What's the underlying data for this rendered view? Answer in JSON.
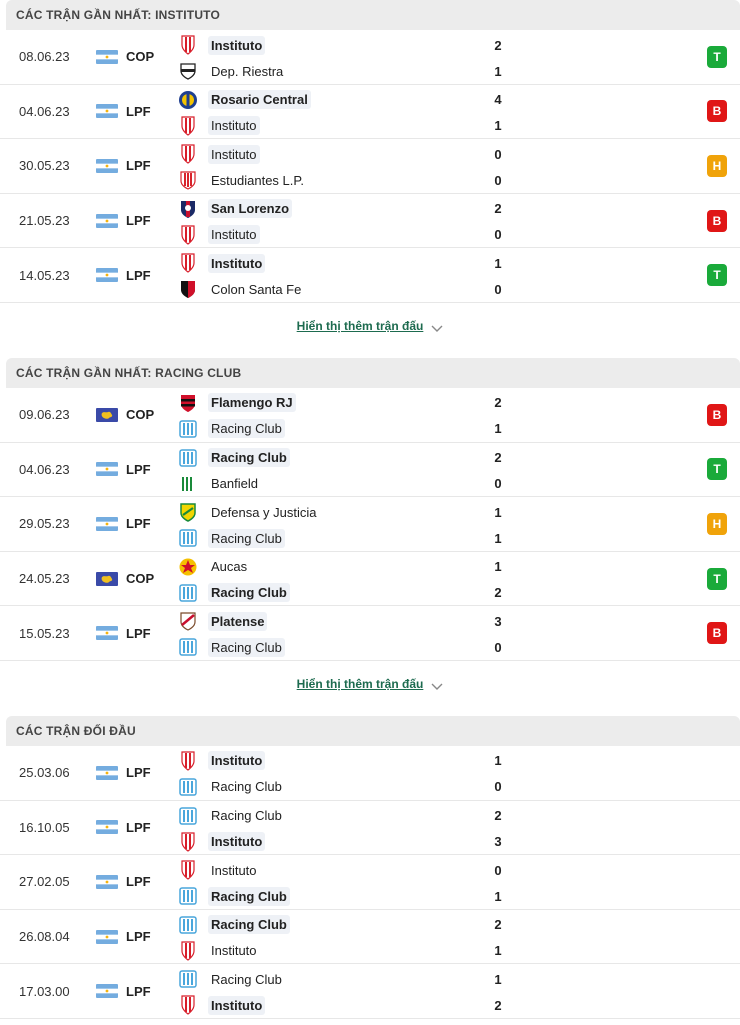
{
  "sections": [
    {
      "title": "CÁC TRẬN GẦN NHẤT: INSTITUTO",
      "more_label": "Hiển thị thêm trận đấu",
      "matches": [
        {
          "date": "08.06.23",
          "flag": "argentina-flag",
          "league": "COP",
          "home": "Instituto",
          "home_logo": "instituto",
          "home_score": "2",
          "away": "Dep. Riestra",
          "away_logo": "riestra",
          "away_score": "1",
          "result": "T",
          "win": "home",
          "hl": "home"
        },
        {
          "date": "04.06.23",
          "flag": "argentina-flag",
          "league": "LPF",
          "home": "Rosario Central",
          "home_logo": "rosario",
          "home_score": "4",
          "away": "Instituto",
          "away_logo": "instituto",
          "away_score": "1",
          "result": "B",
          "win": "home",
          "hl": "away"
        },
        {
          "date": "30.05.23",
          "flag": "argentina-flag",
          "league": "LPF",
          "home": "Instituto",
          "home_logo": "instituto",
          "home_score": "0",
          "away": "Estudiantes L.P.",
          "away_logo": "estudiantes",
          "away_score": "0",
          "result": "H",
          "win": "",
          "hl": "home"
        },
        {
          "date": "21.05.23",
          "flag": "argentina-flag",
          "league": "LPF",
          "home": "San Lorenzo",
          "home_logo": "sanlorenzo",
          "home_score": "2",
          "away": "Instituto",
          "away_logo": "instituto",
          "away_score": "0",
          "result": "B",
          "win": "home",
          "hl": "away"
        },
        {
          "date": "14.05.23",
          "flag": "argentina-flag",
          "league": "LPF",
          "home": "Instituto",
          "home_logo": "instituto",
          "home_score": "1",
          "away": "Colon Santa Fe",
          "away_logo": "colon",
          "away_score": "0",
          "result": "T",
          "win": "home",
          "hl": "home"
        }
      ]
    },
    {
      "title": "CÁC TRẬN GẦN NHẤT: RACING CLUB",
      "more_label": "Hiển thị thêm trận đấu",
      "matches": [
        {
          "date": "09.06.23",
          "flag": "conmebol-flag",
          "league": "COP",
          "home": "Flamengo RJ",
          "home_logo": "flamengo",
          "home_score": "2",
          "away": "Racing Club",
          "away_logo": "racing",
          "away_score": "1",
          "result": "B",
          "win": "home",
          "hl": "away"
        },
        {
          "date": "04.06.23",
          "flag": "argentina-flag",
          "league": "LPF",
          "home": "Racing Club",
          "home_logo": "racing",
          "home_score": "2",
          "away": "Banfield",
          "away_logo": "banfield",
          "away_score": "0",
          "result": "T",
          "win": "home",
          "hl": "home"
        },
        {
          "date": "29.05.23",
          "flag": "argentina-flag",
          "league": "LPF",
          "home": "Defensa y Justicia",
          "home_logo": "defensa",
          "home_score": "1",
          "away": "Racing Club",
          "away_logo": "racing",
          "away_score": "1",
          "result": "H",
          "win": "",
          "hl": "away"
        },
        {
          "date": "24.05.23",
          "flag": "conmebol-flag",
          "league": "COP",
          "home": "Aucas",
          "home_logo": "aucas",
          "home_score": "1",
          "away": "Racing Club",
          "away_logo": "racing",
          "away_score": "2",
          "result": "T",
          "win": "away",
          "hl": "away"
        },
        {
          "date": "15.05.23",
          "flag": "argentina-flag",
          "league": "LPF",
          "home": "Platense",
          "home_logo": "platense",
          "home_score": "3",
          "away": "Racing Club",
          "away_logo": "racing",
          "away_score": "0",
          "result": "B",
          "win": "home",
          "hl": "away"
        }
      ]
    },
    {
      "title": "CÁC TRẬN ĐỐI ĐẦU",
      "more_label": "",
      "matches": [
        {
          "date": "25.03.06",
          "flag": "argentina-flag",
          "league": "LPF",
          "home": "Instituto",
          "home_logo": "instituto",
          "home_score": "1",
          "away": "Racing Club",
          "away_logo": "racing",
          "away_score": "0",
          "result": "",
          "win": "home",
          "hl": ""
        },
        {
          "date": "16.10.05",
          "flag": "argentina-flag",
          "league": "LPF",
          "home": "Racing Club",
          "home_logo": "racing",
          "home_score": "2",
          "away": "Instituto",
          "away_logo": "instituto",
          "away_score": "3",
          "result": "",
          "win": "away",
          "hl": ""
        },
        {
          "date": "27.02.05",
          "flag": "argentina-flag",
          "league": "LPF",
          "home": "Instituto",
          "home_logo": "instituto",
          "home_score": "0",
          "away": "Racing Club",
          "away_logo": "racing",
          "away_score": "1",
          "result": "",
          "win": "away",
          "hl": ""
        },
        {
          "date": "26.08.04",
          "flag": "argentina-flag",
          "league": "LPF",
          "home": "Racing Club",
          "home_logo": "racing",
          "home_score": "2",
          "away": "Instituto",
          "away_logo": "instituto",
          "away_score": "1",
          "result": "",
          "win": "home",
          "hl": ""
        },
        {
          "date": "17.03.00",
          "flag": "argentina-flag",
          "league": "LPF",
          "home": "Racing Club",
          "home_logo": "racing",
          "home_score": "1",
          "away": "Instituto",
          "away_logo": "instituto",
          "away_score": "2",
          "result": "",
          "win": "away",
          "hl": ""
        }
      ]
    }
  ],
  "colors": {
    "win": "#1aaa3a",
    "loss": "#e01616",
    "draw": "#f0a30a",
    "link": "#1d6b4f"
  }
}
